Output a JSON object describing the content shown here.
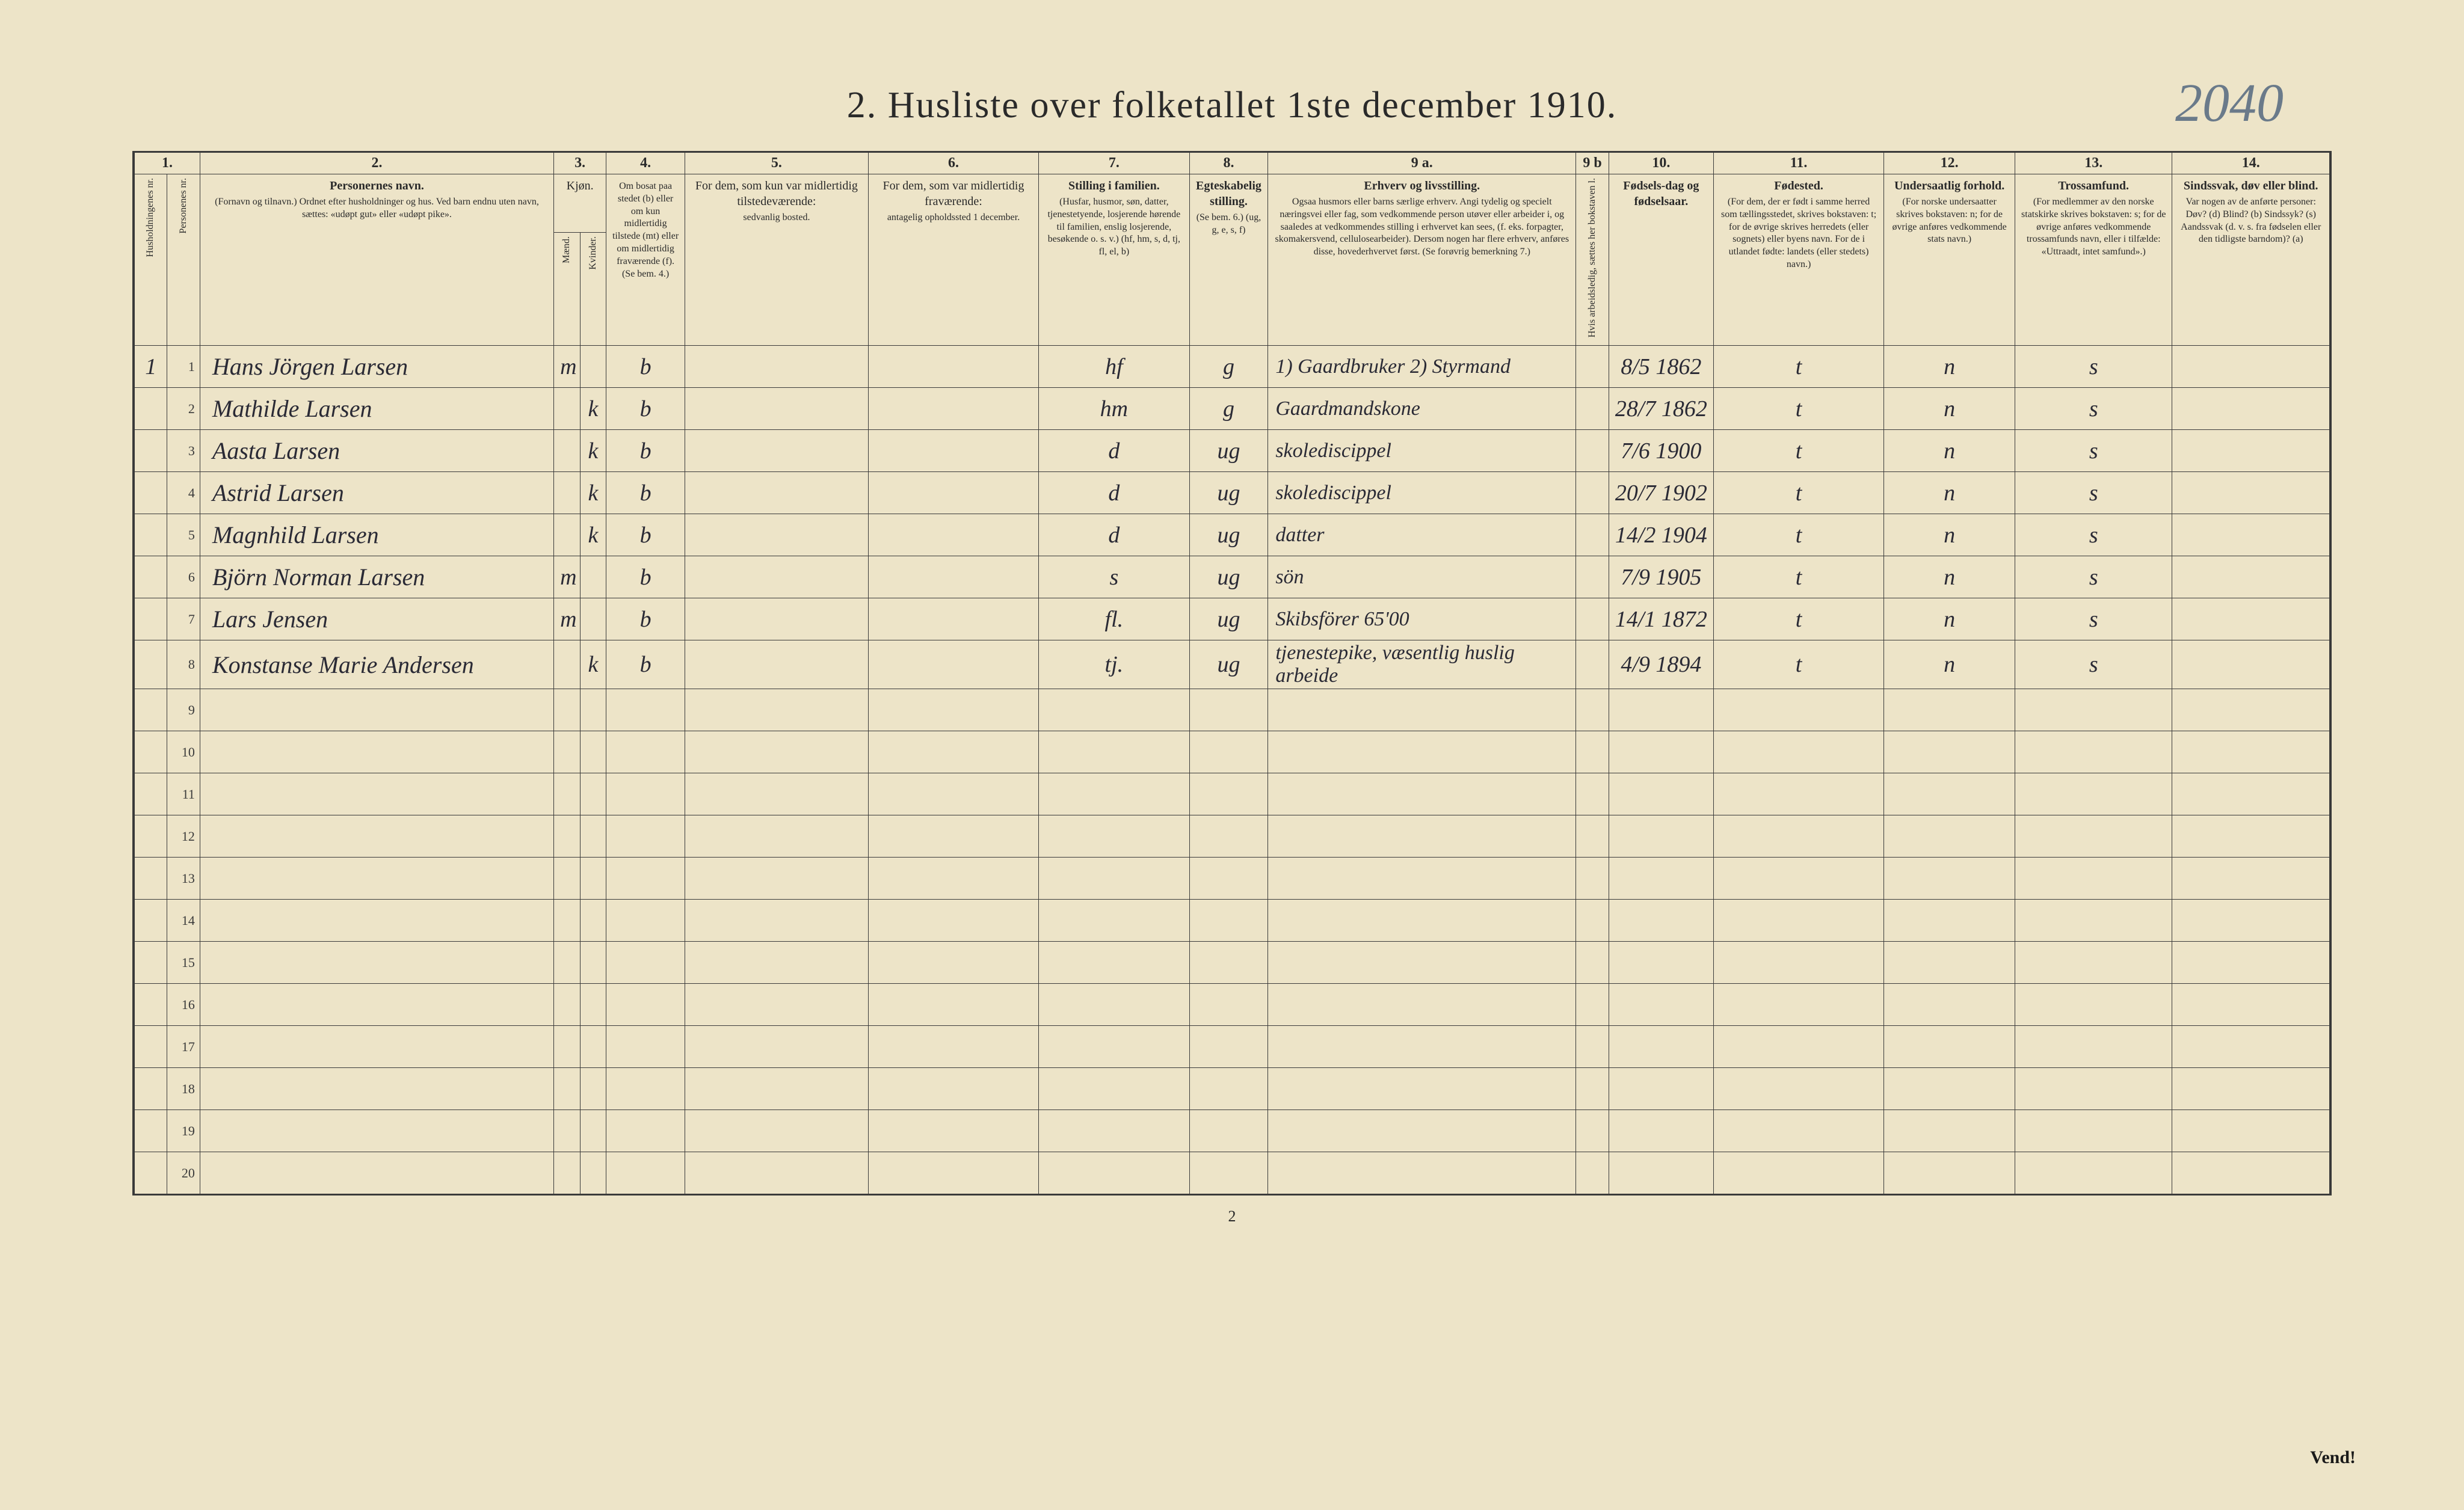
{
  "title": "2.  Husliste over folketallet 1ste december 1910.",
  "handwritten_top_right": "2040",
  "page_number_bottom": "2",
  "vend": "Vend!",
  "colors": {
    "paper": "#ede4c8",
    "ink": "#2a2a2a",
    "handwriting": "#2a2a35",
    "pencil": "#6a7a8a"
  },
  "column_numbers": [
    "1.",
    "2.",
    "3.",
    "4.",
    "5.",
    "6.",
    "7.",
    "8.",
    "9 a.",
    "9 b",
    "10.",
    "11.",
    "12.",
    "13.",
    "14."
  ],
  "headers": {
    "c1a": "Husholdningenes nr.",
    "c1b": "Personenes nr.",
    "c2_title": "Personernes navn.",
    "c2_sub": "(Fornavn og tilnavn.)\nOrdnet efter husholdninger og hus.\nVed barn endnu uten navn, sættes: «udøpt gut» eller «udøpt pike».",
    "c3_title": "Kjøn.",
    "c3_m": "Mænd.",
    "c3_k": "Kvinder.",
    "c4": "Om bosat paa stedet (b) eller om kun midlertidig tilstede (mt) eller om midlertidig fraværende (f). (Se bem. 4.)",
    "c5_title": "For dem, som kun var midlertidig tilstedeværende:",
    "c5_sub": "sedvanlig bosted.",
    "c6_title": "For dem, som var midlertidig fraværende:",
    "c6_sub": "antagelig opholdssted 1 december.",
    "c7_title": "Stilling i familien.",
    "c7_sub": "(Husfar, husmor, søn, datter, tjenestetyende, losjerende hørende til familien, enslig losjerende, besøkende o. s. v.)\n(hf, hm, s, d, tj, fl, el, b)",
    "c8_title": "Egteskabelig stilling.",
    "c8_sub": "(Se bem. 6.)\n(ug, g, e, s, f)",
    "c9a_title": "Erhverv og livsstilling.",
    "c9a_sub": "Ogsaa husmors eller barns særlige erhverv. Angi tydelig og specielt næringsvei eller fag, som vedkommende person utøver eller arbeider i, og saaledes at vedkommendes stilling i erhvervet kan sees, (f. eks. forpagter, skomakersvend, cellulosearbeider). Dersom nogen har flere erhverv, anføres disse, hovederhvervet først.\n(Se forøvrig bemerkning 7.)",
    "c9b": "Hvis arbeidsledig, sættes her bokstaven l.",
    "c10_title": "Fødsels-dag og fødselsaar.",
    "c11_title": "Fødested.",
    "c11_sub": "(For dem, der er født i samme herred som tællingsstedet, skrives bokstaven: t; for de øvrige skrives herredets (eller sognets) eller byens navn. For de i utlandet fødte: landets (eller stedets) navn.)",
    "c12_title": "Undersaatlig forhold.",
    "c12_sub": "(For norske undersaatter skrives bokstaven: n; for de øvrige anføres vedkommende stats navn.)",
    "c13_title": "Trossamfund.",
    "c13_sub": "(For medlemmer av den norske statskirke skrives bokstaven: s; for de øvrige anføres vedkommende trossamfunds navn, eller i tilfælde: «Uttraadt, intet samfund».)",
    "c14_title": "Sindssvak, døv eller blind.",
    "c14_sub": "Var nogen av de anførte personer:\nDøv? (d)\nBlind? (b)\nSindssyk? (s)\nAandssvak (d. v. s. fra fødselen eller den tidligste barndom)? (a)"
  },
  "rows": [
    {
      "hh": "1",
      "pn": "1",
      "name": "Hans Jörgen Larsen",
      "sex": "m",
      "bost": "b",
      "c7": "hf",
      "c8": "g",
      "occ": "1) Gaardbruker\n2) Styrmand",
      "dob": "8/5 1862",
      "fsted": "t",
      "und": "n",
      "tros": "s"
    },
    {
      "hh": "",
      "pn": "2",
      "name": "Mathilde Larsen",
      "sex": "k",
      "bost": "b",
      "c7": "hm",
      "c8": "g",
      "occ": "Gaardmandskone",
      "dob": "28/7 1862",
      "fsted": "t",
      "und": "n",
      "tros": "s"
    },
    {
      "hh": "",
      "pn": "3",
      "name": "Aasta Larsen",
      "sex": "k",
      "bost": "b",
      "c7": "d",
      "c8": "ug",
      "occ": "skolediscippel",
      "dob": "7/6 1900",
      "fsted": "t",
      "und": "n",
      "tros": "s"
    },
    {
      "hh": "",
      "pn": "4",
      "name": "Astrid Larsen",
      "sex": "k",
      "bost": "b",
      "c7": "d",
      "c8": "ug",
      "occ": "skolediscippel",
      "dob": "20/7 1902",
      "fsted": "t",
      "und": "n",
      "tros": "s"
    },
    {
      "hh": "",
      "pn": "5",
      "name": "Magnhild Larsen",
      "sex": "k",
      "bost": "b",
      "c7": "d",
      "c8": "ug",
      "occ": "datter",
      "dob": "14/2 1904",
      "fsted": "t",
      "und": "n",
      "tros": "s"
    },
    {
      "hh": "",
      "pn": "6",
      "name": "Björn Norman Larsen",
      "sex": "m",
      "bost": "b",
      "c7": "s",
      "c8": "ug",
      "occ": "sön",
      "dob": "7/9 1905",
      "fsted": "t",
      "und": "n",
      "tros": "s"
    },
    {
      "hh": "",
      "pn": "7",
      "name": "Lars Jensen",
      "sex": "m",
      "bost": "b",
      "c7": "fl.",
      "c8": "ug",
      "occ": "Skibsförer   65'00",
      "dob": "14/1 1872",
      "fsted": "t",
      "und": "n",
      "tros": "s"
    },
    {
      "hh": "",
      "pn": "8",
      "name": "Konstanse Marie Andersen",
      "sex": "k",
      "bost": "b",
      "c7": "tj.",
      "c8": "ug",
      "occ": "tjenestepike, væsentlig huslig arbeide",
      "dob": "4/9 1894",
      "fsted": "t",
      "und": "n",
      "tros": "s"
    }
  ],
  "empty_rows": [
    "9",
    "10",
    "11",
    "12",
    "13",
    "14",
    "15",
    "16",
    "17",
    "18",
    "19",
    "20"
  ]
}
